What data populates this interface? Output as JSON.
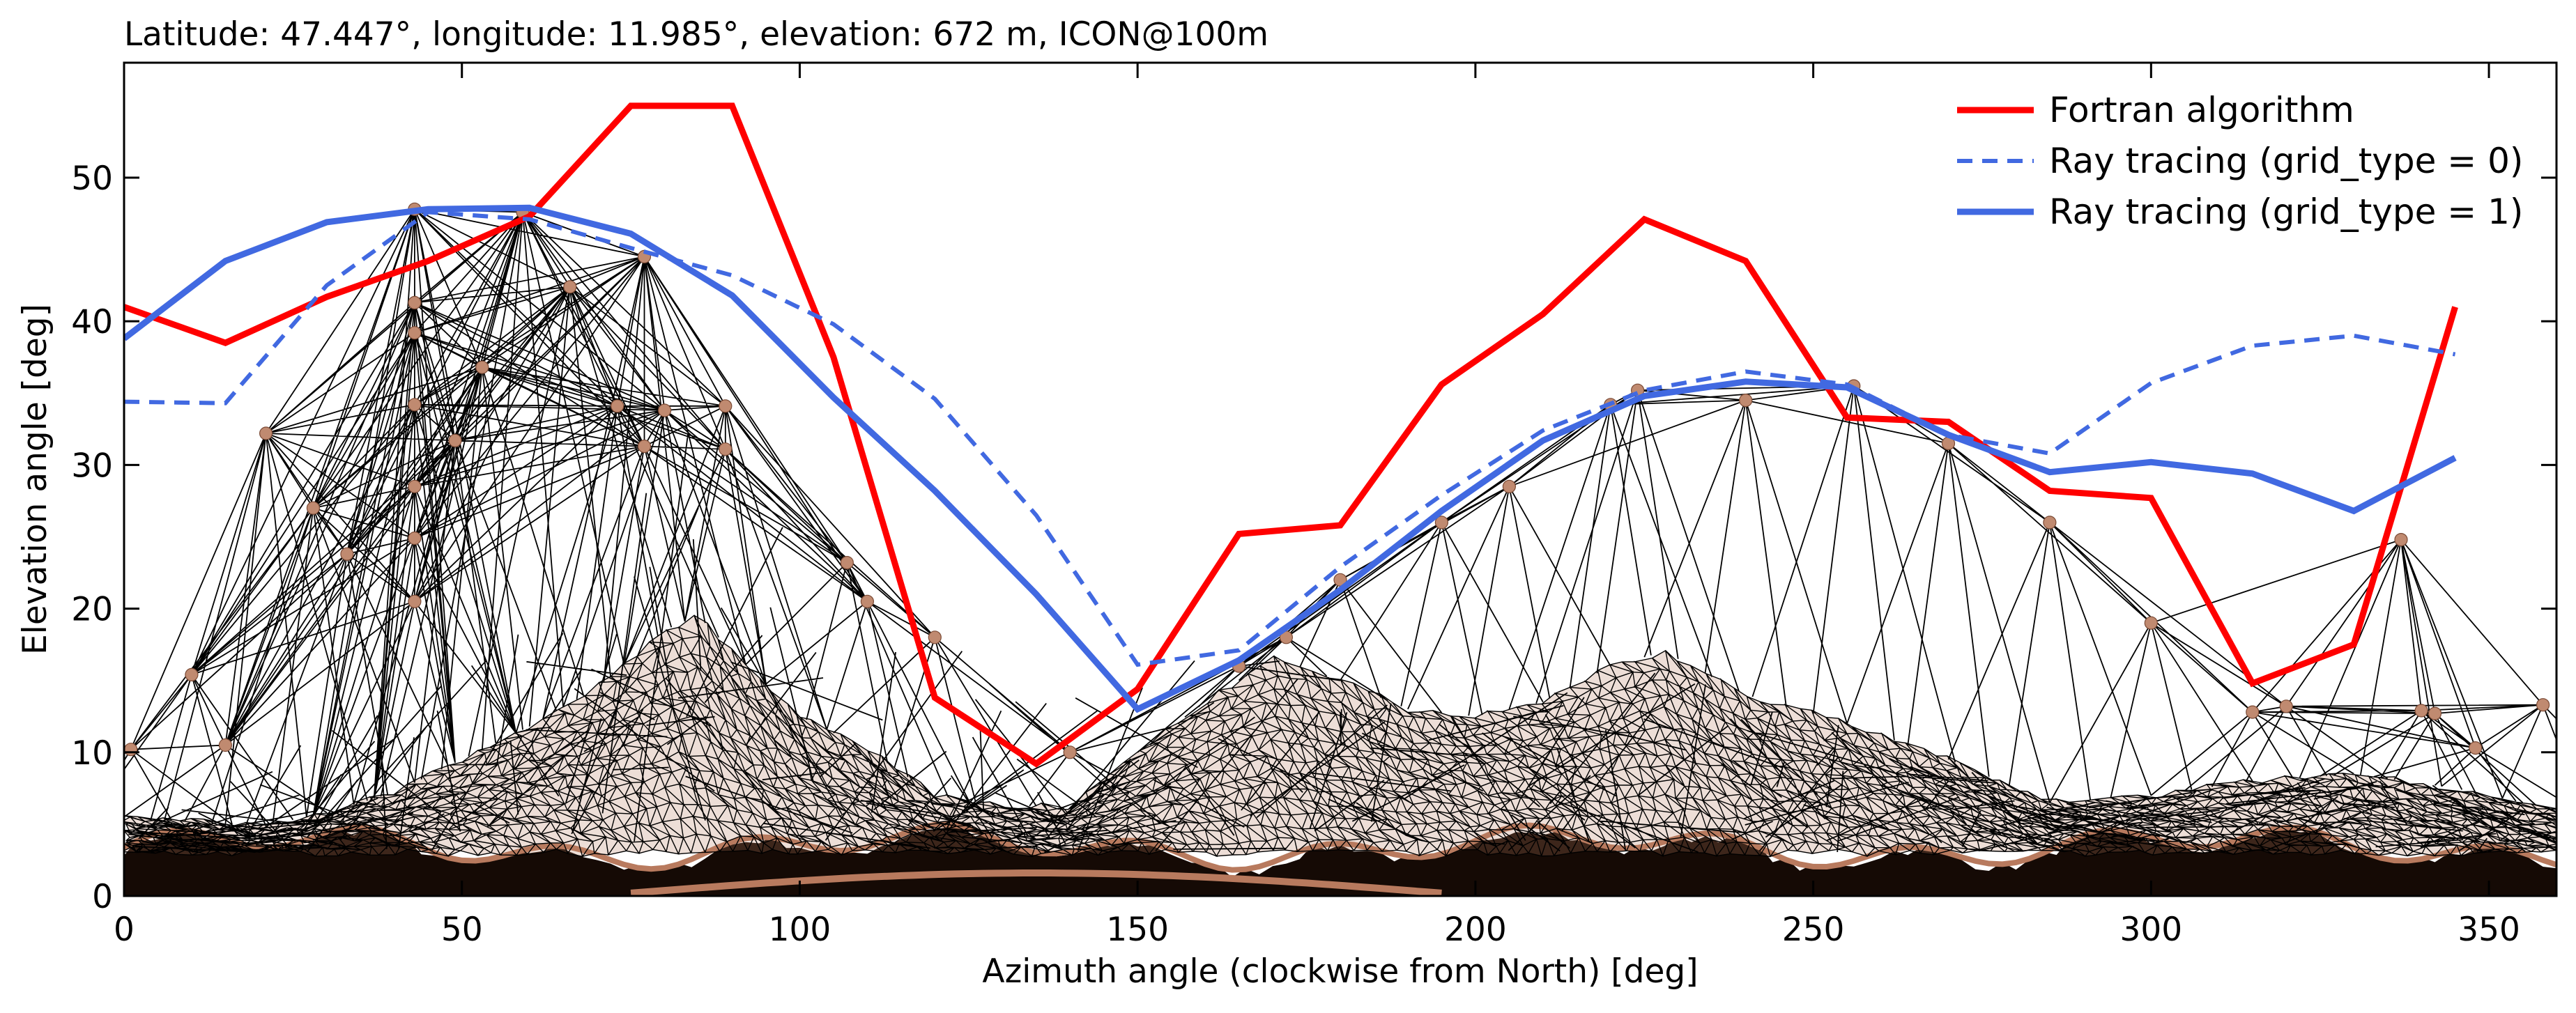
{
  "chart_data": {
    "type": "line",
    "title": "Latitude: 47.447°, longitude: 11.985°, elevation: 672 m, ICON@100m",
    "xlabel": "Azimuth angle (clockwise from North) [deg]",
    "ylabel": "Elevation angle [deg]",
    "xlim": [
      0,
      360
    ],
    "ylim": [
      0,
      58
    ],
    "xticks": [
      0,
      50,
      100,
      150,
      200,
      250,
      300,
      350
    ],
    "yticks": [
      0,
      10,
      20,
      30,
      40,
      50
    ],
    "grid": false,
    "legend_position": "top-right",
    "series": [
      {
        "name": "Fortran algorithm",
        "color": "#ff0000",
        "style": "solid",
        "x": [
          0,
          15,
          30,
          45,
          60,
          75,
          90,
          105,
          120,
          135,
          150,
          165,
          180,
          195,
          210,
          225,
          240,
          255,
          270,
          285,
          300,
          315,
          330,
          345
        ],
        "y": [
          41.0,
          38.5,
          41.7,
          44.2,
          47.3,
          55.0,
          55.0,
          37.5,
          13.8,
          9.2,
          14.4,
          25.2,
          25.8,
          35.6,
          40.5,
          47.1,
          44.2,
          33.3,
          33.0,
          28.2,
          27.7,
          14.8,
          17.5,
          41.0
        ]
      },
      {
        "name": "Ray tracing (grid_type = 0)",
        "color": "#4169e1",
        "style": "dashed",
        "x": [
          0,
          15,
          30,
          45,
          60,
          75,
          90,
          105,
          120,
          135,
          150,
          165,
          180,
          195,
          210,
          225,
          240,
          255,
          270,
          285,
          300,
          315,
          330,
          345
        ],
        "y": [
          34.4,
          34.3,
          42.5,
          47.6,
          47.1,
          45.1,
          43.2,
          39.8,
          34.6,
          26.5,
          16.1,
          17.1,
          22.9,
          27.9,
          32.4,
          35.2,
          36.5,
          35.6,
          32.1,
          30.8,
          35.7,
          38.3,
          39.0,
          37.7
        ]
      },
      {
        "name": "Ray tracing (grid_type = 1)",
        "color": "#4169e1",
        "style": "solid",
        "x": [
          0,
          15,
          30,
          45,
          60,
          75,
          90,
          105,
          120,
          135,
          150,
          165,
          180,
          195,
          210,
          225,
          240,
          255,
          270,
          285,
          300,
          315,
          330,
          345
        ],
        "y": [
          38.8,
          44.2,
          46.9,
          47.8,
          47.9,
          46.1,
          41.8,
          34.7,
          28.2,
          21.0,
          13.0,
          16.4,
          21.3,
          26.8,
          31.7,
          34.8,
          35.8,
          35.4,
          32.1,
          29.5,
          30.2,
          29.4,
          26.8,
          30.5
        ]
      }
    ],
    "terrain_mesh": {
      "description_colors": {
        "edge": "#000000",
        "vertex": "#c08a70"
      },
      "ridge_points": [
        [
          1,
          10.2
        ],
        [
          10,
          15.4
        ],
        [
          15,
          10.5
        ],
        [
          21,
          32.2
        ],
        [
          28,
          27
        ],
        [
          33,
          23.8
        ],
        [
          43,
          47.8
        ],
        [
          43,
          41.3
        ],
        [
          43,
          39.2
        ],
        [
          43,
          34.2
        ],
        [
          43,
          28.5
        ],
        [
          43,
          24.9
        ],
        [
          43,
          20.5
        ],
        [
          49,
          31.7
        ],
        [
          53,
          36.8
        ],
        [
          59,
          47.6
        ],
        [
          66,
          42.4
        ],
        [
          73,
          34.1
        ],
        [
          77,
          31.3
        ],
        [
          77,
          44.5
        ],
        [
          80,
          33.8
        ],
        [
          89,
          34.1
        ],
        [
          89,
          31.1
        ],
        [
          107,
          23.2
        ],
        [
          110,
          20.5
        ],
        [
          120,
          18
        ],
        [
          140,
          10
        ],
        [
          165,
          16
        ],
        [
          172,
          18
        ],
        [
          180,
          22
        ],
        [
          195,
          26
        ],
        [
          205,
          28.5
        ],
        [
          220,
          34.2
        ],
        [
          224,
          35.2
        ],
        [
          240,
          34.5
        ],
        [
          256,
          35.5
        ],
        [
          270,
          31.5
        ],
        [
          285,
          26
        ],
        [
          300,
          19
        ],
        [
          315,
          12.8
        ],
        [
          320,
          13.2
        ],
        [
          337,
          24.8
        ],
        [
          340,
          12.9
        ],
        [
          342,
          12.7
        ],
        [
          348,
          10.3
        ],
        [
          358,
          13.3
        ]
      ],
      "surface_profile": [
        [
          0,
          5.5
        ],
        [
          10,
          5.2
        ],
        [
          20,
          4.8
        ],
        [
          30,
          5.8
        ],
        [
          40,
          7.2
        ],
        [
          50,
          9.5
        ],
        [
          60,
          11.8
        ],
        [
          70,
          14.5
        ],
        [
          80,
          18.5
        ],
        [
          85,
          19.5
        ],
        [
          90,
          17
        ],
        [
          100,
          12.5
        ],
        [
          110,
          10.2
        ],
        [
          120,
          7
        ],
        [
          130,
          6.3
        ],
        [
          140,
          6.2
        ],
        [
          150,
          10
        ],
        [
          160,
          13.5
        ],
        [
          170,
          16.5
        ],
        [
          180,
          15
        ],
        [
          190,
          13
        ],
        [
          200,
          12.5
        ],
        [
          210,
          13.5
        ],
        [
          220,
          16
        ],
        [
          228,
          17
        ],
        [
          240,
          14
        ],
        [
          255,
          12
        ],
        [
          270,
          9.5
        ],
        [
          285,
          6.5
        ],
        [
          300,
          7
        ],
        [
          315,
          8
        ],
        [
          330,
          8.5
        ],
        [
          345,
          7.5
        ],
        [
          360,
          6
        ]
      ]
    }
  }
}
